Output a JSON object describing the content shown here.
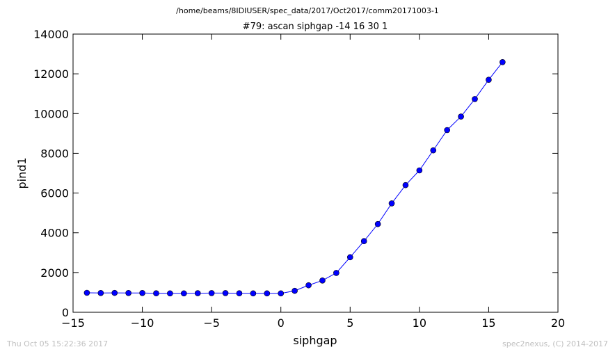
{
  "header": {
    "path": "/home/beams/8IDIUSER/spec_data/2017/Oct2017/comm20171003-1"
  },
  "footer": {
    "timestamp": "Thu Oct 05 15:22:36 2017",
    "credit": "spec2nexus, (C) 2014-2017"
  },
  "chart_data": {
    "type": "line",
    "title": "#79: ascan  siphgap -14 16  30 1",
    "xlabel": "siphgap",
    "ylabel": "pind1",
    "xlim": [
      -15,
      20
    ],
    "ylim": [
      0,
      14000
    ],
    "xticks": [
      -15,
      -10,
      -5,
      0,
      5,
      10,
      15,
      20
    ],
    "yticks": [
      0,
      2000,
      4000,
      6000,
      8000,
      10000,
      12000,
      14000
    ],
    "xtick_labels": [
      "−15",
      "−10",
      "−5",
      "0",
      "5",
      "10",
      "15",
      "20"
    ],
    "ytick_labels": [
      "0",
      "2000",
      "4000",
      "6000",
      "8000",
      "10000",
      "12000",
      "14000"
    ],
    "grid": false,
    "marker": "circle",
    "color": "#0000ff",
    "x": [
      -14,
      -13,
      -12,
      -11,
      -10,
      -9,
      -8,
      -7,
      -6,
      -5,
      -4,
      -3,
      -2,
      -1,
      0,
      1,
      2,
      3,
      4,
      5,
      6,
      7,
      8,
      9,
      10,
      11,
      12,
      13,
      14,
      15,
      16
    ],
    "y": [
      980,
      970,
      975,
      970,
      970,
      955,
      950,
      950,
      960,
      965,
      965,
      955,
      950,
      950,
      950,
      1080,
      1360,
      1600,
      1980,
      2770,
      3580,
      4440,
      5480,
      6400,
      7140,
      8150,
      9170,
      9850,
      10730,
      11700,
      12590
    ]
  }
}
